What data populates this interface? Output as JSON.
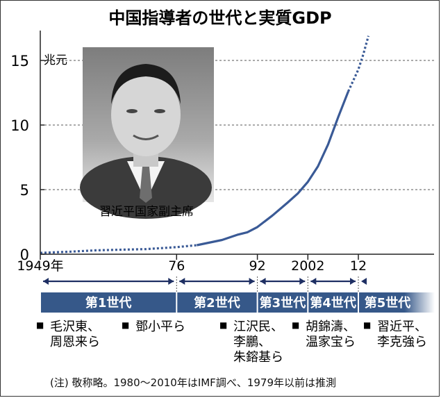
{
  "chart_data": {
    "type": "line",
    "title": "中国指導者の世代と実質GDP",
    "unit_label": "兆元",
    "ylim": [
      0,
      17
    ],
    "yticks": [
      0,
      5,
      10,
      15
    ],
    "x_tick_labels": [
      "1949年",
      "76",
      "92",
      "2002",
      "12"
    ],
    "x_ticks": [
      1949,
      1976,
      1992,
      2002,
      2012
    ],
    "xlim": [
      1949,
      2021
    ],
    "grid": "dashed horizontal at 5, 10, 15",
    "series": [
      {
        "points": [
          [
            1949,
            0.1
          ],
          [
            1955,
            0.2
          ],
          [
            1960,
            0.3
          ],
          [
            1965,
            0.35
          ],
          [
            1970,
            0.4
          ],
          [
            1976,
            0.55
          ],
          [
            1980,
            0.7
          ],
          [
            1985,
            1.1
          ],
          [
            1988,
            1.5
          ],
          [
            1990,
            1.7
          ],
          [
            1992,
            2.1
          ],
          [
            1995,
            3.0
          ],
          [
            1998,
            4.0
          ],
          [
            2000,
            4.7
          ],
          [
            2002,
            5.6
          ],
          [
            2004,
            6.8
          ],
          [
            2006,
            8.5
          ],
          [
            2008,
            10.6
          ],
          [
            2010,
            12.6
          ],
          [
            2012,
            14.3
          ],
          [
            2013,
            15.5
          ],
          [
            2014,
            16.9
          ]
        ],
        "solid_from": 1980,
        "solid_to": 2010,
        "color": "#3a5a96"
      }
    ]
  },
  "photo_caption": "習近平国家副主席",
  "generations": [
    {
      "label": "第1世代",
      "leaders": [
        "毛沢東、",
        "周恩来ら"
      ]
    },
    {
      "label": "第2世代",
      "leaders": [
        "鄧小平ら"
      ]
    },
    {
      "label": "第3世代",
      "leaders": [
        "江沢民、",
        "李鵬、",
        "朱鎔基ら"
      ]
    },
    {
      "label": "第4世代",
      "leaders": [
        "胡錦濤、",
        "温家宝ら"
      ]
    },
    {
      "label": "第5世代",
      "leaders": [
        "習近平、",
        "李克強ら"
      ]
    }
  ],
  "note": "(注) 敬称略。1980～2010年はIMF調べ、1979年以前は推測",
  "colors": {
    "line": "#3a5a96",
    "band": "#365889",
    "arrow": "#1e2f63"
  }
}
